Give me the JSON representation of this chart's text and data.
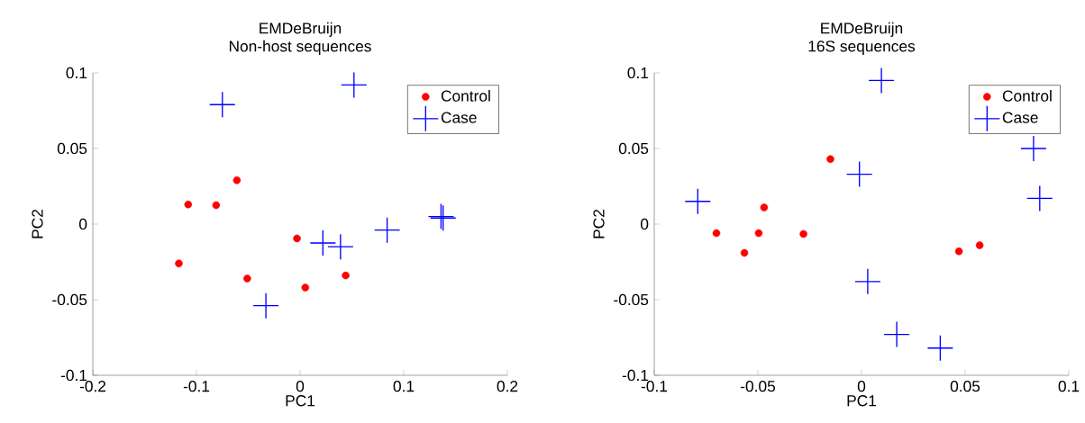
{
  "chart_data": [
    {
      "type": "scatter",
      "title": "EMDeBruijn",
      "subtitle": "Non-host sequences",
      "xlabel": "PC1",
      "ylabel": "PC2",
      "xlim": [
        -0.2,
        0.2
      ],
      "ylim": [
        -0.1,
        0.1
      ],
      "xticks": [
        -0.2,
        -0.1,
        0,
        0.1,
        0.2
      ],
      "yticks": [
        -0.1,
        -0.05,
        0,
        0.05,
        0.1
      ],
      "legend": "top right",
      "series": [
        {
          "name": "Control",
          "color": "#ff0000",
          "marker": "circle",
          "x": [
            -0.117,
            -0.108,
            -0.081,
            -0.061,
            -0.051,
            -0.003,
            0.005,
            0.044
          ],
          "values": [
            -0.026,
            0.013,
            0.0125,
            0.029,
            -0.036,
            -0.0095,
            -0.042,
            -0.034
          ]
        },
        {
          "name": "Case",
          "color": "#0000ff",
          "marker": "cross",
          "x": [
            -0.075,
            0.052,
            0.022,
            0.039,
            0.084,
            0.136,
            0.138,
            -0.033
          ],
          "values": [
            0.079,
            0.092,
            -0.0125,
            -0.015,
            -0.004,
            0.005,
            0.004,
            -0.054
          ]
        }
      ]
    },
    {
      "type": "scatter",
      "title": "EMDeBruijn",
      "subtitle": "16S sequences",
      "xlabel": "PC1",
      "ylabel": "PC2",
      "xlim": [
        -0.1,
        0.1
      ],
      "ylim": [
        -0.1,
        0.1
      ],
      "xticks": [
        -0.1,
        -0.05,
        0,
        0.05,
        0.1
      ],
      "yticks": [
        -0.1,
        -0.05,
        0,
        0.05,
        0.1
      ],
      "legend": "top right",
      "series": [
        {
          "name": "Control",
          "color": "#ff0000",
          "marker": "circle",
          "x": [
            -0.07,
            -0.0565,
            -0.0496,
            -0.047,
            -0.028,
            -0.015,
            0.047,
            0.057
          ],
          "values": [
            -0.006,
            -0.019,
            -0.006,
            0.011,
            -0.0065,
            0.043,
            -0.018,
            -0.014
          ]
        },
        {
          "name": "Case",
          "color": "#0000ff",
          "marker": "cross",
          "x": [
            -0.079,
            0.0096,
            -0.001,
            0.003,
            0.017,
            0.038,
            0.083,
            0.086
          ],
          "values": [
            0.015,
            0.095,
            0.033,
            -0.038,
            -0.073,
            -0.082,
            0.05,
            0.017
          ]
        }
      ]
    }
  ]
}
